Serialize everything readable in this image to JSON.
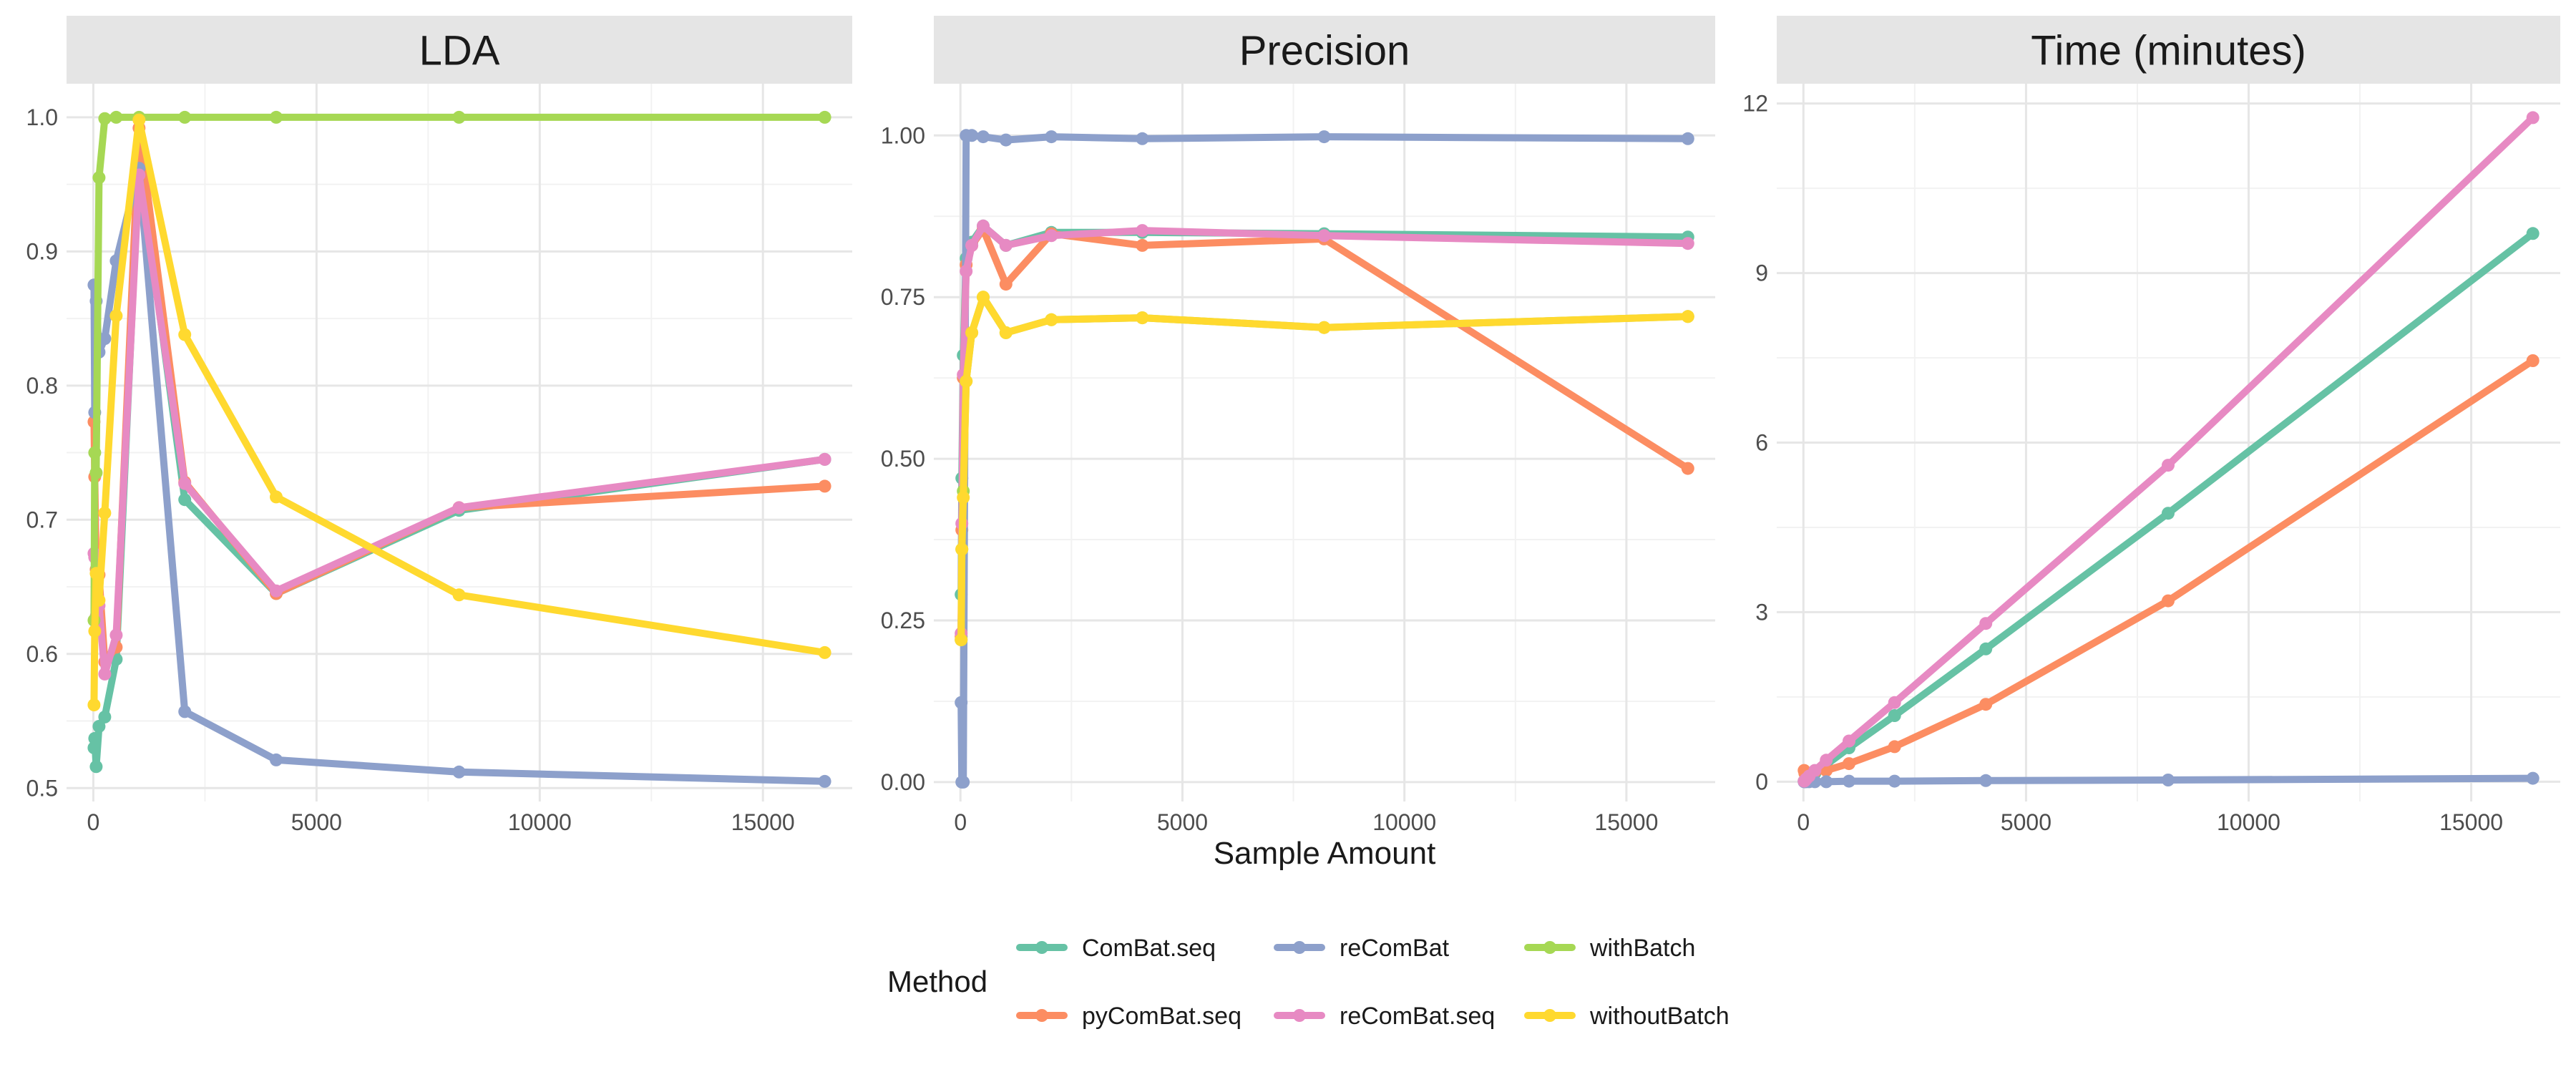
{
  "xlabel": "Sample Amount",
  "legend": {
    "title": "Method",
    "items": [
      {
        "name": "ComBat.seq",
        "color": "#66c2a5"
      },
      {
        "name": "pyComBat.seq",
        "color": "#fc8d62"
      },
      {
        "name": "reComBat",
        "color": "#8da0cb"
      },
      {
        "name": "reComBat.seq",
        "color": "#e78ac3"
      },
      {
        "name": "withBatch",
        "color": "#a6d854"
      },
      {
        "name": "withoutBatch",
        "color": "#ffd92f"
      }
    ]
  },
  "chart_data": [
    {
      "type": "line",
      "title": "LDA",
      "xlabel": "Sample Amount",
      "ylabel": "",
      "xlim": [
        -600,
        17000
      ],
      "ylim": [
        0.49,
        1.025
      ],
      "xticks": [
        0,
        5000,
        10000,
        15000
      ],
      "yticks": [
        0.5,
        0.6,
        0.7,
        0.8,
        0.9,
        1.0
      ],
      "ytick_labels": [
        "0.5",
        "0.6",
        "0.7",
        "0.8",
        "0.9",
        "1.0"
      ],
      "x": [
        16,
        32,
        64,
        128,
        256,
        512,
        1024,
        2048,
        4096,
        8192,
        16384
      ],
      "series": [
        {
          "name": "ComBat.seq",
          "values": [
            0.53,
            0.537,
            0.516,
            0.546,
            0.553,
            0.596,
            0.968,
            0.715,
            0.645,
            0.707,
            0.745
          ]
        },
        {
          "name": "pyComBat.seq",
          "values": [
            0.773,
            0.732,
            0.663,
            0.659,
            0.594,
            0.605,
            0.992,
            0.728,
            0.645,
            0.709,
            0.725
          ]
        },
        {
          "name": "reComBat",
          "values": [
            0.875,
            0.78,
            0.863,
            0.825,
            0.835,
            0.893,
            0.962,
            0.557,
            0.521,
            0.512,
            0.505
          ]
        },
        {
          "name": "reComBat.seq",
          "values": [
            0.675,
            0.672,
            0.628,
            0.636,
            0.585,
            0.614,
            0.957,
            0.727,
            0.647,
            0.709,
            0.745
          ]
        },
        {
          "name": "withBatch",
          "values": [
            0.625,
            0.75,
            0.735,
            0.955,
            0.999,
            1.0,
            1.0,
            1.0,
            1.0,
            1.0,
            1.0
          ]
        },
        {
          "name": "withoutBatch",
          "values": [
            0.562,
            0.617,
            0.66,
            0.64,
            0.705,
            0.852,
            0.998,
            0.838,
            0.717,
            0.644,
            0.601
          ]
        }
      ]
    },
    {
      "type": "line",
      "title": "Precision",
      "xlabel": "Sample Amount",
      "ylabel": "",
      "xlim": [
        -600,
        17000
      ],
      "ylim": [
        -0.03,
        1.08
      ],
      "xticks": [
        0,
        5000,
        10000,
        15000
      ],
      "yticks": [
        0,
        0.25,
        0.5,
        0.75,
        1.0
      ],
      "ytick_labels": [
        "0.00",
        "0.25",
        "0.50",
        "0.75",
        "1.00"
      ],
      "x": [
        16,
        32,
        64,
        128,
        256,
        512,
        1024,
        2048,
        4096,
        8192,
        16384
      ],
      "series": [
        {
          "name": "ComBat.seq",
          "values": [
            0.29,
            0.47,
            0.66,
            0.81,
            0.835,
            0.86,
            0.83,
            0.85,
            0.85,
            0.848,
            0.843
          ]
        },
        {
          "name": "pyComBat.seq",
          "values": [
            0.225,
            0.39,
            0.625,
            0.8,
            0.83,
            0.855,
            0.77,
            0.848,
            0.83,
            0.84,
            0.485
          ]
        },
        {
          "name": "reComBat",
          "values": [
            0.123,
            0.0,
            0.0,
            1.0,
            1.0,
            0.998,
            0.993,
            0.998,
            0.995,
            0.998,
            0.995
          ]
        },
        {
          "name": "reComBat.seq",
          "values": [
            0.23,
            0.4,
            0.63,
            0.79,
            0.83,
            0.86,
            0.83,
            0.845,
            0.853,
            0.845,
            0.833
          ]
        },
        {
          "name": "withBatch",
          "values": [
            0.22,
            0.36,
            0.45,
            0.62,
            0.695,
            0.75,
            0.695,
            0.715,
            0.718,
            0.703,
            0.72
          ]
        },
        {
          "name": "withoutBatch",
          "values": [
            0.22,
            0.36,
            0.44,
            0.62,
            0.695,
            0.75,
            0.695,
            0.715,
            0.718,
            0.703,
            0.72
          ]
        }
      ]
    },
    {
      "type": "line",
      "title": "Time (minutes)",
      "xlabel": "Sample Amount",
      "ylabel": "",
      "xlim": [
        -600,
        17000
      ],
      "ylim": [
        -0.35,
        12.35
      ],
      "xticks": [
        0,
        5000,
        10000,
        15000
      ],
      "yticks": [
        0,
        3,
        6,
        9,
        12
      ],
      "ytick_labels": [
        "0",
        "3",
        "6",
        "9",
        "12"
      ],
      "x": [
        16,
        32,
        64,
        128,
        256,
        512,
        1024,
        2048,
        4096,
        8192,
        16384
      ],
      "series": [
        {
          "name": "ComBat.seq",
          "values": [
            0.01,
            0.02,
            0.04,
            0.07,
            0.15,
            0.3,
            0.6,
            1.17,
            2.35,
            4.75,
            9.7
          ]
        },
        {
          "name": "pyComBat.seq",
          "values": [
            0.2,
            0.15,
            0.12,
            0.14,
            0.18,
            0.2,
            0.32,
            0.62,
            1.37,
            3.2,
            7.45
          ]
        },
        {
          "name": "reComBat",
          "values": [
            0.0,
            0.0,
            0.0,
            0.0,
            0.0,
            0.0,
            0.01,
            0.01,
            0.02,
            0.03,
            0.06
          ]
        },
        {
          "name": "reComBat.seq",
          "values": [
            0.01,
            0.02,
            0.05,
            0.1,
            0.2,
            0.38,
            0.72,
            1.4,
            2.8,
            5.6,
            11.75
          ]
        }
      ]
    }
  ]
}
